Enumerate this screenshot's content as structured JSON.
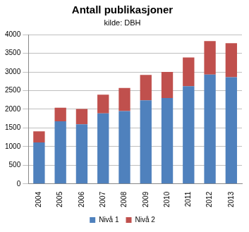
{
  "chart_data": {
    "type": "bar",
    "title": "Antall publikasjoner",
    "subtitle": "kilde: DBH",
    "categories": [
      "2004",
      "2005",
      "2006",
      "2007",
      "2008",
      "2009",
      "2010",
      "2011",
      "2012",
      "2013"
    ],
    "series": [
      {
        "name": "Nivå 1",
        "color": "#4f81bd",
        "values": [
          1110,
          1680,
          1600,
          1890,
          1950,
          2240,
          2300,
          2620,
          2930,
          2860
        ]
      },
      {
        "name": "Nivå 2",
        "color": "#c0504d",
        "values": [
          300,
          360,
          410,
          500,
          620,
          680,
          700,
          770,
          900,
          910
        ]
      }
    ],
    "stacked": true,
    "ylim": [
      0,
      4000
    ],
    "yticks": [
      0,
      500,
      1000,
      1500,
      2000,
      2500,
      3000,
      3500,
      4000
    ],
    "grid": true,
    "legend": "bottom"
  }
}
